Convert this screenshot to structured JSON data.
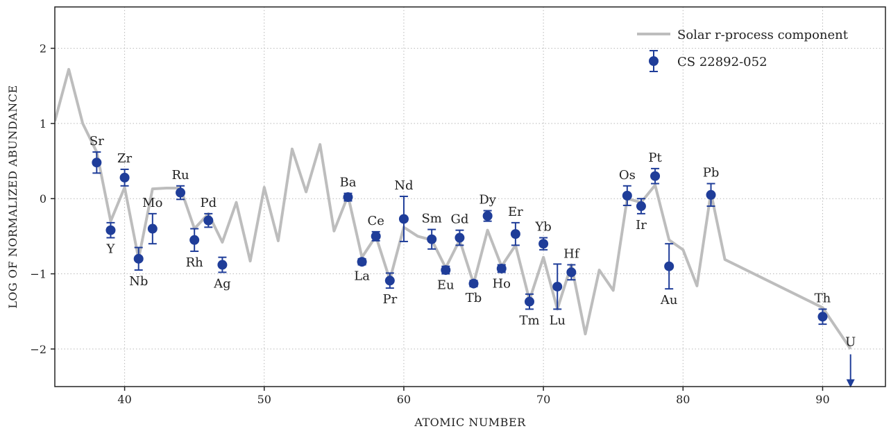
{
  "chart_data": {
    "type": "line",
    "xlabel": "ATOMIC NUMBER",
    "ylabel": "LOG OF NORMALIZED ABUNDANCE",
    "xlim": [
      35,
      94.5
    ],
    "ylim": [
      -2.5,
      2.55
    ],
    "xticks": [
      40,
      50,
      60,
      70,
      80,
      90
    ],
    "yticks": [
      -2,
      -1,
      0,
      1,
      2
    ],
    "ytick_labels": [
      "−2",
      "−1",
      "0",
      "1",
      "2"
    ],
    "grid": true,
    "legend_position": "top-right",
    "colors": {
      "line": "#bdbdbd",
      "points": "#1f3d99",
      "grid": "#b8b8b8",
      "axis": "#222222"
    },
    "series": [
      {
        "name": "Solar r-process component",
        "type": "line",
        "x": [
          35,
          36,
          37,
          38,
          39,
          40,
          41,
          42,
          43,
          44,
          45,
          46,
          47,
          48,
          49,
          50,
          51,
          52,
          53,
          54,
          55,
          56,
          57,
          58,
          59,
          60,
          61,
          62,
          63,
          64,
          65,
          66,
          67,
          68,
          69,
          70,
          71,
          72,
          73,
          74,
          75,
          76,
          77,
          78,
          79,
          80,
          81,
          82,
          83,
          90,
          92
        ],
        "y": [
          1.03,
          1.72,
          1.0,
          0.62,
          -0.3,
          0.15,
          -0.8,
          0.13,
          0.14,
          0.14,
          -0.4,
          -0.2,
          -0.58,
          -0.05,
          -0.83,
          0.15,
          -0.56,
          0.66,
          0.09,
          0.72,
          -0.43,
          0.04,
          -0.78,
          -0.5,
          -1.08,
          -0.38,
          -0.5,
          -0.55,
          -0.92,
          -0.55,
          -1.13,
          -0.42,
          -0.9,
          -0.62,
          -1.35,
          -0.78,
          -1.47,
          -0.88,
          -1.8,
          -0.95,
          -1.22,
          0.0,
          -0.05,
          0.18,
          -0.55,
          -0.68,
          -1.16,
          0.08,
          -0.81,
          -1.45,
          -2.0
        ]
      },
      {
        "name": "CS 22892-052",
        "type": "scatter",
        "points": [
          {
            "label": "Sr",
            "x": 38,
            "y": 0.48,
            "err": 0.14,
            "label_pos": "above"
          },
          {
            "label": "Y",
            "x": 39,
            "y": -0.42,
            "err": 0.1,
            "label_pos": "below"
          },
          {
            "label": "Zr",
            "x": 40,
            "y": 0.28,
            "err": 0.11,
            "label_pos": "above"
          },
          {
            "label": "Nb",
            "x": 41,
            "y": -0.8,
            "err": 0.15,
            "label_pos": "below"
          },
          {
            "label": "Mo",
            "x": 42,
            "y": -0.4,
            "err": 0.2,
            "label_pos": "above"
          },
          {
            "label": "Ru",
            "x": 44,
            "y": 0.08,
            "err": 0.09,
            "label_pos": "above"
          },
          {
            "label": "Rh",
            "x": 45,
            "y": -0.55,
            "err": 0.15,
            "label_pos": "below"
          },
          {
            "label": "Pd",
            "x": 46,
            "y": -0.29,
            "err": 0.09,
            "label_pos": "above"
          },
          {
            "label": "Ag",
            "x": 47,
            "y": -0.88,
            "err": 0.1,
            "label_pos": "below"
          },
          {
            "label": "Ba",
            "x": 56,
            "y": 0.02,
            "err": 0.05,
            "label_pos": "above"
          },
          {
            "label": "La",
            "x": 57,
            "y": -0.84,
            "err": 0.04,
            "label_pos": "below"
          },
          {
            "label": "Ce",
            "x": 58,
            "y": -0.5,
            "err": 0.06,
            "label_pos": "above"
          },
          {
            "label": "Pr",
            "x": 59,
            "y": -1.09,
            "err": 0.1,
            "label_pos": "below"
          },
          {
            "label": "Nd",
            "x": 60,
            "y": -0.27,
            "err": 0.3,
            "label_pos": "above"
          },
          {
            "label": "Sm",
            "x": 62,
            "y": -0.54,
            "err": 0.13,
            "label_pos": "above"
          },
          {
            "label": "Eu",
            "x": 63,
            "y": -0.95,
            "err": 0.05,
            "label_pos": "below"
          },
          {
            "label": "Gd",
            "x": 64,
            "y": -0.52,
            "err": 0.1,
            "label_pos": "above"
          },
          {
            "label": "Tb",
            "x": 65,
            "y": -1.13,
            "err": 0.04,
            "label_pos": "below"
          },
          {
            "label": "Dy",
            "x": 66,
            "y": -0.23,
            "err": 0.07,
            "label_pos": "above"
          },
          {
            "label": "Ho",
            "x": 67,
            "y": -0.93,
            "err": 0.05,
            "label_pos": "below"
          },
          {
            "label": "Er",
            "x": 68,
            "y": -0.47,
            "err": 0.15,
            "label_pos": "above"
          },
          {
            "label": "Tm",
            "x": 69,
            "y": -1.37,
            "err": 0.1,
            "label_pos": "below"
          },
          {
            "label": "Yb",
            "x": 70,
            "y": -0.6,
            "err": 0.08,
            "label_pos": "above"
          },
          {
            "label": "Lu",
            "x": 71,
            "y": -1.17,
            "err": 0.3,
            "label_pos": "below"
          },
          {
            "label": "Hf",
            "x": 72,
            "y": -0.98,
            "err": 0.1,
            "label_pos": "above"
          },
          {
            "label": "Os",
            "x": 76,
            "y": 0.04,
            "err": 0.13,
            "label_pos": "above"
          },
          {
            "label": "Ir",
            "x": 77,
            "y": -0.1,
            "err": 0.1,
            "label_pos": "below"
          },
          {
            "label": "Pt",
            "x": 78,
            "y": 0.3,
            "err": 0.1,
            "label_pos": "above"
          },
          {
            "label": "Au",
            "x": 79,
            "y": -0.9,
            "err": 0.3,
            "label_pos": "below"
          },
          {
            "label": "Pb",
            "x": 82,
            "y": 0.05,
            "err": 0.15,
            "label_pos": "above"
          },
          {
            "label": "Th",
            "x": 90,
            "y": -1.57,
            "err": 0.1,
            "label_pos": "above"
          }
        ]
      }
    ],
    "upper_limits": [
      {
        "label": "U",
        "x": 92,
        "y": -2.2,
        "label_pos": "above"
      }
    ]
  }
}
